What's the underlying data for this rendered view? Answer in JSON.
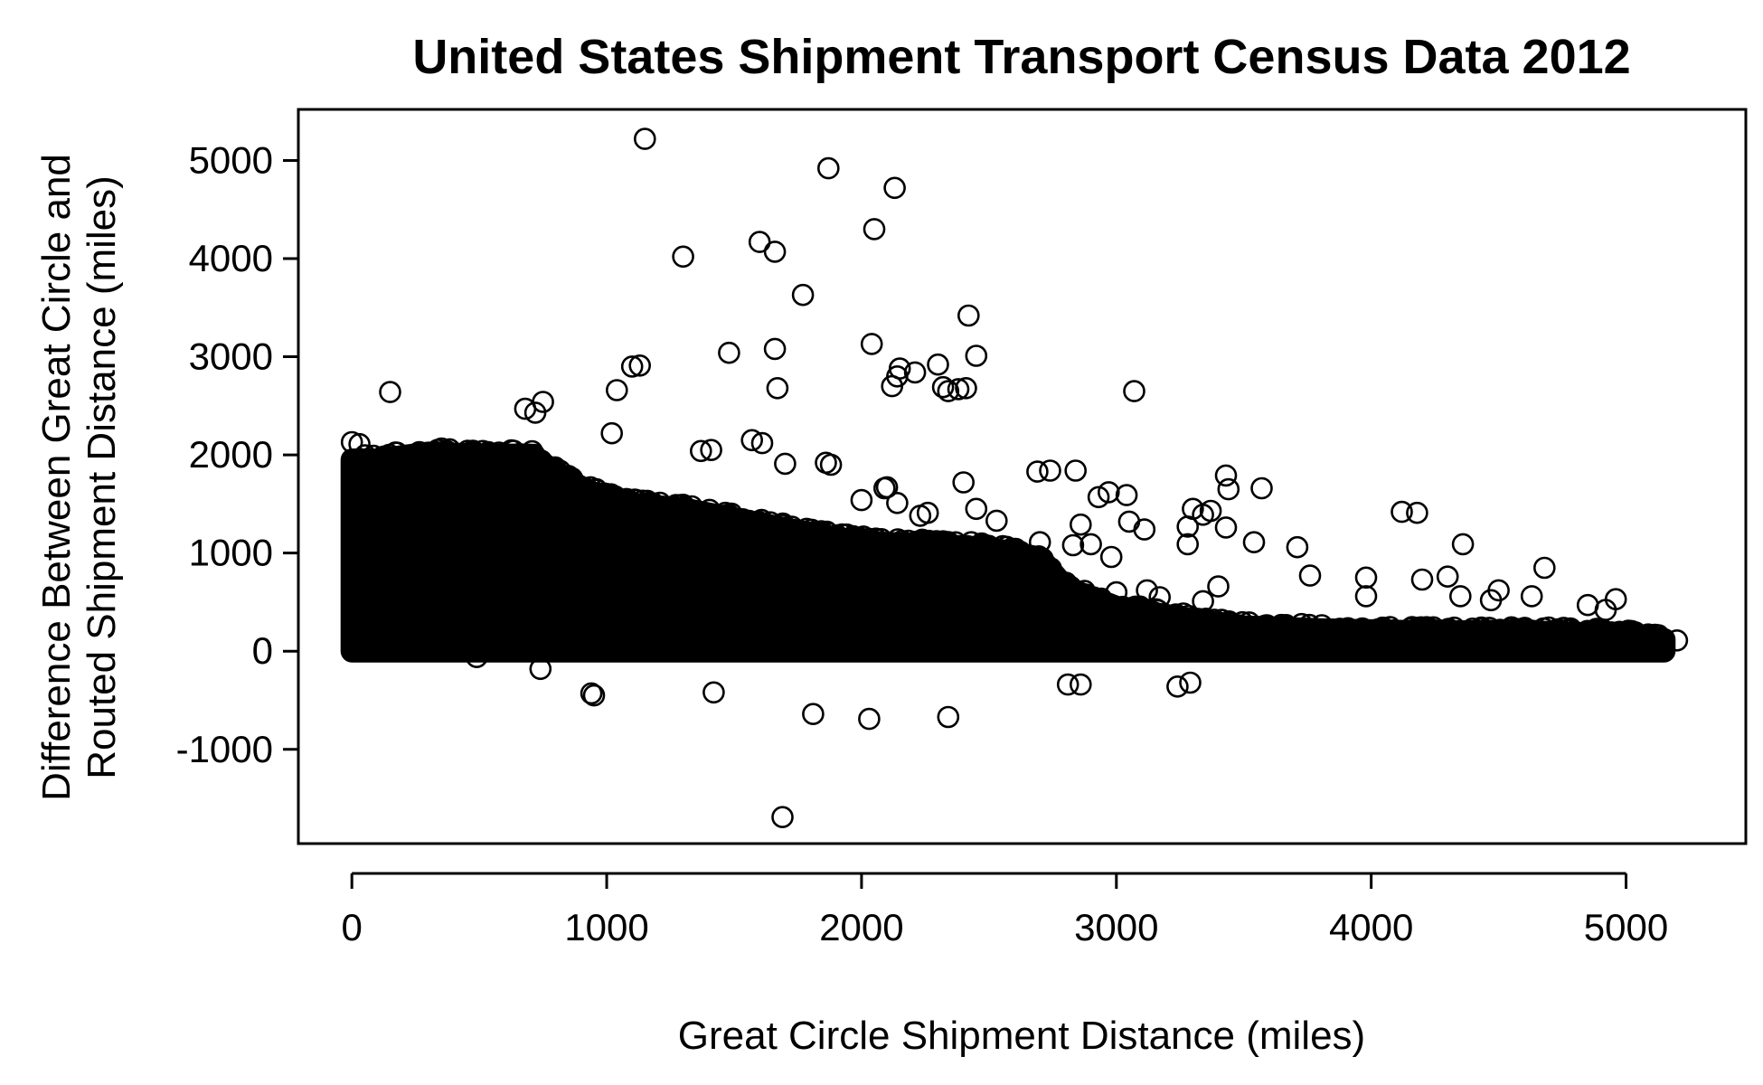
{
  "chart_data": {
    "type": "scatter",
    "title": "United States Shipment Transport Census Data 2012",
    "xlabel": "Great Circle Shipment Distance (miles)",
    "ylabel_lines": [
      "Difference Between Great Circle and",
      "Routed Shipment Distance (miles)"
    ],
    "xlim": [
      -210,
      5470
    ],
    "ylim": [
      -1960,
      5520
    ],
    "x_ticks": [
      0,
      1000,
      2000,
      3000,
      4000,
      5000
    ],
    "x_tick_labels": [
      "0",
      "1000",
      "2000",
      "3000",
      "4000",
      "5000"
    ],
    "y_ticks": [
      -1000,
      0,
      1000,
      2000,
      3000,
      4000,
      5000
    ],
    "y_tick_labels": [
      "-1000",
      "0",
      "1000",
      "2000",
      "3000",
      "4000",
      "5000"
    ],
    "grid": false,
    "legend": "none",
    "marker": "open-circle",
    "marker_color": "#000000",
    "dense_band_envelope": [
      [
        0,
        1950
      ],
      [
        100,
        1950
      ],
      [
        300,
        2020
      ],
      [
        500,
        2000
      ],
      [
        700,
        2000
      ],
      [
        900,
        1650
      ],
      [
        1100,
        1500
      ],
      [
        1300,
        1450
      ],
      [
        1500,
        1350
      ],
      [
        1700,
        1250
      ],
      [
        1900,
        1150
      ],
      [
        2100,
        1100
      ],
      [
        2300,
        1080
      ],
      [
        2500,
        1050
      ],
      [
        2700,
        950
      ],
      [
        2800,
        650
      ],
      [
        3000,
        450
      ],
      [
        3300,
        320
      ],
      [
        3500,
        250
      ],
      [
        3800,
        220
      ],
      [
        4200,
        200
      ],
      [
        4600,
        200
      ],
      [
        5000,
        170
      ],
      [
        5150,
        120
      ]
    ],
    "series": [
      {
        "values": [
          {
            "x": 1150,
            "y": 5220
          },
          {
            "x": 1870,
            "y": 4920
          },
          {
            "x": 2130,
            "y": 4720
          },
          {
            "x": 1600,
            "y": 4170
          },
          {
            "x": 1660,
            "y": 4070
          },
          {
            "x": 1300,
            "y": 4020
          },
          {
            "x": 2050,
            "y": 4300
          },
          {
            "x": 1770,
            "y": 3630
          },
          {
            "x": 2420,
            "y": 3420
          },
          {
            "x": 1660,
            "y": 3080
          },
          {
            "x": 2040,
            "y": 3130
          },
          {
            "x": 2450,
            "y": 3010
          },
          {
            "x": 1480,
            "y": 3040
          },
          {
            "x": 2300,
            "y": 2920
          },
          {
            "x": 2150,
            "y": 2880
          },
          {
            "x": 2140,
            "y": 2800
          },
          {
            "x": 2210,
            "y": 2840
          },
          {
            "x": 1100,
            "y": 2900
          },
          {
            "x": 1130,
            "y": 2910
          },
          {
            "x": 2120,
            "y": 2700
          },
          {
            "x": 2320,
            "y": 2690
          },
          {
            "x": 2340,
            "y": 2650
          },
          {
            "x": 2410,
            "y": 2680
          },
          {
            "x": 2380,
            "y": 2670
          },
          {
            "x": 3070,
            "y": 2650
          },
          {
            "x": 1670,
            "y": 2680
          },
          {
            "x": 150,
            "y": 2640
          },
          {
            "x": 1040,
            "y": 2660
          },
          {
            "x": 750,
            "y": 2540
          },
          {
            "x": 680,
            "y": 2470
          },
          {
            "x": 720,
            "y": 2430
          },
          {
            "x": 1020,
            "y": 2220
          },
          {
            "x": 0,
            "y": 2130
          },
          {
            "x": 30,
            "y": 2110
          },
          {
            "x": 1570,
            "y": 2150
          },
          {
            "x": 1610,
            "y": 2120
          },
          {
            "x": 1370,
            "y": 2040
          },
          {
            "x": 1410,
            "y": 2050
          },
          {
            "x": 1860,
            "y": 1920
          },
          {
            "x": 1880,
            "y": 1900
          },
          {
            "x": 1700,
            "y": 1910
          },
          {
            "x": 2690,
            "y": 1830
          },
          {
            "x": 2740,
            "y": 1840
          },
          {
            "x": 2840,
            "y": 1840
          },
          {
            "x": 3430,
            "y": 1790
          },
          {
            "x": 3440,
            "y": 1650
          },
          {
            "x": 3570,
            "y": 1660
          },
          {
            "x": 2400,
            "y": 1720
          },
          {
            "x": 2090,
            "y": 1660
          },
          {
            "x": 2100,
            "y": 1670
          },
          {
            "x": 2000,
            "y": 1540
          },
          {
            "x": 2140,
            "y": 1510
          },
          {
            "x": 2930,
            "y": 1570
          },
          {
            "x": 2970,
            "y": 1620
          },
          {
            "x": 3040,
            "y": 1590
          },
          {
            "x": 3300,
            "y": 1450
          },
          {
            "x": 3340,
            "y": 1390
          },
          {
            "x": 3370,
            "y": 1430
          },
          {
            "x": 3280,
            "y": 1270
          },
          {
            "x": 3430,
            "y": 1260
          },
          {
            "x": 4120,
            "y": 1420
          },
          {
            "x": 4180,
            "y": 1410
          },
          {
            "x": 4360,
            "y": 1090
          },
          {
            "x": 3710,
            "y": 1060
          },
          {
            "x": 3540,
            "y": 1110
          },
          {
            "x": 3280,
            "y": 1090
          },
          {
            "x": 2860,
            "y": 1290
          },
          {
            "x": 2450,
            "y": 1450
          },
          {
            "x": 2530,
            "y": 1330
          },
          {
            "x": 2700,
            "y": 1110
          },
          {
            "x": 2830,
            "y": 1080
          },
          {
            "x": 2900,
            "y": 1090
          },
          {
            "x": 3110,
            "y": 1240
          },
          {
            "x": 3050,
            "y": 1320
          },
          {
            "x": 2980,
            "y": 960
          },
          {
            "x": 2260,
            "y": 1410
          },
          {
            "x": 2230,
            "y": 1380
          },
          {
            "x": 3760,
            "y": 770
          },
          {
            "x": 3980,
            "y": 750
          },
          {
            "x": 4200,
            "y": 730
          },
          {
            "x": 4300,
            "y": 760
          },
          {
            "x": 4680,
            "y": 850
          },
          {
            "x": 4630,
            "y": 560
          },
          {
            "x": 4500,
            "y": 620
          },
          {
            "x": 4350,
            "y": 560
          },
          {
            "x": 4470,
            "y": 520
          },
          {
            "x": 4960,
            "y": 530
          },
          {
            "x": 4850,
            "y": 470
          },
          {
            "x": 4920,
            "y": 420
          },
          {
            "x": 3980,
            "y": 560
          },
          {
            "x": 3400,
            "y": 660
          },
          {
            "x": 3340,
            "y": 510
          },
          {
            "x": 3120,
            "y": 620
          },
          {
            "x": 3170,
            "y": 550
          },
          {
            "x": 3000,
            "y": 600
          },
          {
            "x": 5200,
            "y": 110
          },
          {
            "x": 5140,
            "y": 70
          },
          {
            "x": 5080,
            "y": 60
          },
          {
            "x": 1690,
            "y": -1690
          },
          {
            "x": 2340,
            "y": -670
          },
          {
            "x": 2030,
            "y": -690
          },
          {
            "x": 1810,
            "y": -640
          },
          {
            "x": 940,
            "y": -430
          },
          {
            "x": 950,
            "y": -450
          },
          {
            "x": 1420,
            "y": -420
          },
          {
            "x": 3240,
            "y": -360
          },
          {
            "x": 3290,
            "y": -320
          },
          {
            "x": 2810,
            "y": -340
          },
          {
            "x": 2860,
            "y": -340
          },
          {
            "x": 740,
            "y": -180
          },
          {
            "x": 490,
            "y": -60
          }
        ]
      }
    ]
  }
}
